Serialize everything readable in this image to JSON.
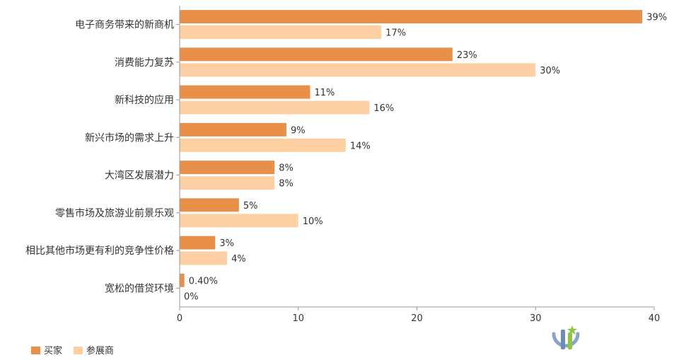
{
  "chart_data": {
    "type": "bar",
    "orientation": "horizontal",
    "categories": [
      "电子商务带来的新商机",
      "消费能力复苏",
      "新科技的应用",
      "新兴市场的需求上升",
      "大湾区发展潜力",
      "零售市场及旅游业前景乐观",
      "相比其他市场更有利的竞争性价格",
      "宽松的借贷环境"
    ],
    "series": [
      {
        "name": "买家",
        "color": "#E8904A",
        "values": [
          39,
          23,
          11,
          9,
          8,
          5,
          3,
          0.4
        ],
        "labels": [
          "39%",
          "23%",
          "11%",
          "9%",
          "8%",
          "5%",
          "3%",
          "0.40%"
        ]
      },
      {
        "name": "参展商",
        "color": "#FDCFA3",
        "values": [
          17,
          30,
          16,
          14,
          8,
          10,
          4,
          0
        ],
        "labels": [
          "17%",
          "30%",
          "16%",
          "14%",
          "8%",
          "10%",
          "4%",
          "0%"
        ]
      }
    ],
    "xlim": [
      0,
      40
    ],
    "xticks": [
      "0",
      "10",
      "20",
      "30",
      "40"
    ],
    "grid": false,
    "legend_position": "bottom-left"
  }
}
